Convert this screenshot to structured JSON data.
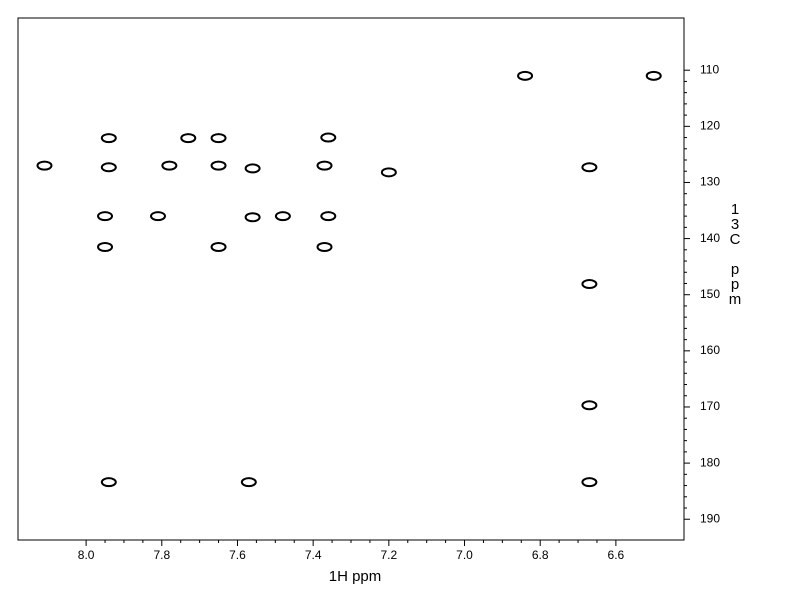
{
  "chart_data": {
    "type": "scatter",
    "x_label": "1H ppm",
    "y_label": "13C ppm",
    "x": [
      6.84,
      6.5,
      7.94,
      7.73,
      7.65,
      7.36,
      8.11,
      7.94,
      7.78,
      7.65,
      7.56,
      7.37,
      7.2,
      6.67,
      7.95,
      7.81,
      7.56,
      7.48,
      7.36,
      7.95,
      7.65,
      7.37,
      6.67,
      6.67,
      7.94,
      7.57,
      6.67
    ],
    "values": [
      111,
      111,
      122.1,
      122.1,
      122.1,
      122,
      127,
      127.3,
      127,
      127,
      127.5,
      127,
      128.2,
      127.3,
      136,
      136,
      136.2,
      136,
      136,
      141.5,
      141.5,
      141.5,
      148.1,
      169.7,
      183.4,
      183.4,
      183.4
    ],
    "color": "#000000",
    "xlim": [
      8.18,
      6.42
    ],
    "ylim": [
      100.7,
      193.7
    ],
    "xticks": [
      {
        "value": 8,
        "label": "8.0"
      },
      7.8,
      7.6,
      7.4,
      7.2,
      {
        "value": 7,
        "label": "7.0"
      },
      6.8,
      6.6
    ],
    "yticks": [
      110,
      120,
      130,
      140,
      150,
      160,
      170,
      180,
      190
    ]
  }
}
